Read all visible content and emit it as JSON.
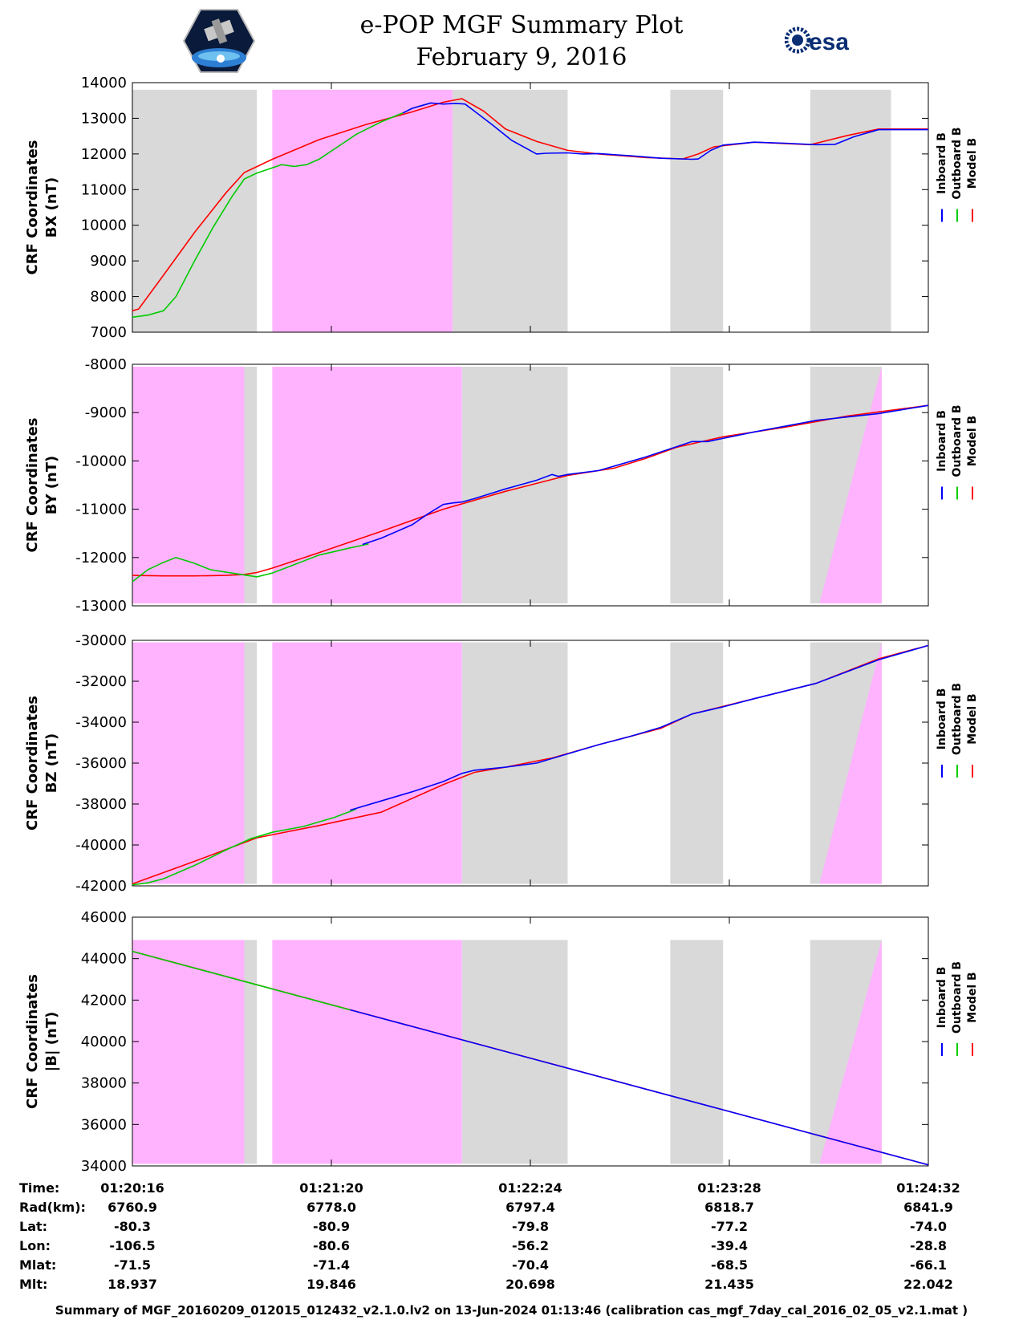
{
  "title_line1": "e-POP MGF Summary Plot",
  "title_line2": "February 9, 2016",
  "logos": {
    "left": "cassiope-epop-mission-logo",
    "right": "esa-logo",
    "right_text": "esa"
  },
  "colors": {
    "inboard": "#0000ff",
    "outboard": "#00cc00",
    "model": "#ff0000",
    "gray_band": "#d9d9d9",
    "pink_band": "#ffb3ff"
  },
  "chart_data": [
    {
      "type": "line",
      "ylabel_line1": "CRF Coordinates",
      "ylabel_line2": "BX (nT)",
      "ylim": [
        7000,
        14000
      ],
      "yticks": [
        7000,
        8000,
        9000,
        10000,
        11000,
        12000,
        13000,
        14000
      ],
      "xlim": [
        0,
        256
      ],
      "legend": [
        "Inboard B",
        "Outboard B",
        "Model B"
      ],
      "bands": [
        {
          "color": "gray",
          "x0": 0,
          "x1": 40,
          "y0": 7000,
          "y1": 13800
        },
        {
          "color": "pink",
          "x0": 45,
          "x1": 103,
          "y0": 7000,
          "y1": 13800
        },
        {
          "color": "gray",
          "x0": 103,
          "x1": 140,
          "y0": 7000,
          "y1": 13800
        },
        {
          "color": "gray",
          "x0": 173,
          "x1": 190,
          "y0": 7000,
          "y1": 13800
        },
        {
          "color": "gray",
          "x0": 218,
          "x1": 244,
          "y0": 7000,
          "y1": 13800
        }
      ],
      "series": [
        {
          "name": "Model B",
          "color": "model",
          "x": [
            0,
            2,
            10,
            20,
            30,
            36,
            45,
            60,
            75,
            90,
            100,
            106,
            113,
            120,
            130,
            140,
            150,
            165,
            177,
            182,
            187,
            200,
            218,
            230,
            240,
            256
          ],
          "y": [
            7600,
            7650,
            8600,
            9800,
            10900,
            11480,
            11850,
            12400,
            12820,
            13180,
            13450,
            13550,
            13200,
            12700,
            12350,
            12100,
            12000,
            11900,
            11860,
            12000,
            12200,
            12330,
            12260,
            12520,
            12700,
            12700
          ]
        },
        {
          "name": "Outboard B",
          "color": "outboard",
          "x": [
            0,
            5,
            10,
            14,
            20,
            26,
            32,
            36,
            40,
            44,
            48,
            52,
            56,
            60,
            66,
            72,
            80,
            87,
            90,
            96
          ],
          "y": [
            7420,
            7480,
            7600,
            8000,
            9000,
            9950,
            10800,
            11300,
            11460,
            11580,
            11700,
            11650,
            11700,
            11850,
            12200,
            12550,
            12900,
            13150,
            13280,
            13430
          ]
        },
        {
          "name": "Inboard B",
          "color": "inboard",
          "x": [
            87,
            90,
            96,
            100,
            104,
            107,
            110,
            116,
            122,
            130,
            133,
            140,
            145,
            150,
            160,
            170,
            180,
            182,
            186,
            190,
            200,
            210,
            220,
            226,
            232,
            240,
            256
          ],
          "y": [
            13150,
            13280,
            13430,
            13400,
            13420,
            13400,
            13200,
            12800,
            12380,
            12000,
            12020,
            12030,
            12000,
            12010,
            11950,
            11880,
            11850,
            11860,
            12100,
            12250,
            12330,
            12300,
            12260,
            12270,
            12480,
            12680,
            12680
          ]
        }
      ]
    },
    {
      "type": "line",
      "ylabel_line1": "CRF Coordinates",
      "ylabel_line2": "BY (nT)",
      "ylim": [
        -13000,
        -8000
      ],
      "yticks": [
        -13000,
        -12000,
        -11000,
        -10000,
        -9000,
        -8000
      ],
      "xlim": [
        0,
        256
      ],
      "legend": [
        "Inboard B",
        "Outboard B",
        "Model B"
      ],
      "bands": [
        {
          "color": "pink",
          "x0": 0,
          "x1": 36,
          "y0": -12950,
          "y1": -8050
        },
        {
          "color": "gray",
          "x0": 36,
          "x1": 40,
          "y0": -12950,
          "y1": -8050
        },
        {
          "color": "pink",
          "x0": 45,
          "x1": 106,
          "y0": -12950,
          "y1": -8050
        },
        {
          "color": "gray",
          "x0": 106,
          "x1": 140,
          "y0": -12950,
          "y1": -8050
        },
        {
          "color": "gray",
          "x0": 173,
          "x1": 190,
          "y0": -12950,
          "y1": -8050
        },
        {
          "color": "gray",
          "x0": 218,
          "x1": 241,
          "y0": -12950,
          "y1": -8050
        },
        {
          "color": "pink-triangle",
          "x0": 221,
          "x1": 241,
          "y0": -12950,
          "y1": -8050
        }
      ],
      "series": [
        {
          "name": "Model B",
          "color": "model",
          "x": [
            0,
            10,
            20,
            30,
            36,
            40,
            45,
            60,
            80,
            100,
            120,
            140,
            155,
            165,
            175,
            190,
            210,
            230,
            256
          ],
          "y": [
            -12370,
            -12380,
            -12380,
            -12370,
            -12350,
            -12310,
            -12220,
            -11900,
            -11460,
            -11000,
            -10630,
            -10300,
            -10150,
            -9950,
            -9720,
            -9500,
            -9300,
            -9070,
            -8850
          ]
        },
        {
          "name": "Outboard B",
          "color": "outboard",
          "x": [
            0,
            5,
            10,
            14,
            20,
            25,
            30,
            35,
            38,
            40,
            45,
            50,
            60,
            70,
            76
          ],
          "y": [
            -12500,
            -12250,
            -12100,
            -12000,
            -12120,
            -12250,
            -12300,
            -12350,
            -12380,
            -12400,
            -12320,
            -12200,
            -11950,
            -11800,
            -11720
          ]
        },
        {
          "name": "Inboard B",
          "color": "inboard",
          "x": [
            74,
            80,
            90,
            95,
            100,
            103,
            106,
            110,
            120,
            130,
            135,
            137,
            140,
            150,
            165,
            180,
            185,
            200,
            220,
            240,
            256
          ],
          "y": [
            -11730,
            -11600,
            -11320,
            -11100,
            -10900,
            -10870,
            -10850,
            -10780,
            -10580,
            -10400,
            -10280,
            -10320,
            -10280,
            -10200,
            -9920,
            -9600,
            -9600,
            -9400,
            -9160,
            -9020,
            -8850
          ]
        }
      ]
    },
    {
      "type": "line",
      "ylabel_line1": "CRF Coordinates",
      "ylabel_line2": "BZ (nT)",
      "ylim": [
        -42000,
        -30000
      ],
      "yticks": [
        -42000,
        -40000,
        -38000,
        -36000,
        -34000,
        -32000,
        -30000
      ],
      "xlim": [
        0,
        256
      ],
      "legend": [
        "Inboard B",
        "Outboard B",
        "Model B"
      ],
      "bands": [
        {
          "color": "pink",
          "x0": 0,
          "x1": 36,
          "y0": -41900,
          "y1": -30100
        },
        {
          "color": "gray",
          "x0": 36,
          "x1": 40,
          "y0": -41900,
          "y1": -30100
        },
        {
          "color": "pink",
          "x0": 45,
          "x1": 106,
          "y0": -41900,
          "y1": -30100
        },
        {
          "color": "gray",
          "x0": 106,
          "x1": 140,
          "y0": -41900,
          "y1": -30100
        },
        {
          "color": "gray",
          "x0": 173,
          "x1": 190,
          "y0": -41900,
          "y1": -30100
        },
        {
          "color": "gray",
          "x0": 218,
          "x1": 241,
          "y0": -41900,
          "y1": -30100
        },
        {
          "color": "pink-triangle",
          "x0": 221,
          "x1": 241,
          "y0": -41900,
          "y1": -30100
        }
      ],
      "series": [
        {
          "name": "Model B",
          "color": "model",
          "x": [
            0,
            20,
            40,
            60,
            80,
            100,
            110,
            120,
            135,
            150,
            170,
            180,
            200,
            220,
            240,
            256
          ],
          "y": [
            -41900,
            -40800,
            -39650,
            -39050,
            -38400,
            -37050,
            -36450,
            -36200,
            -35750,
            -35100,
            -34300,
            -33600,
            -32850,
            -32100,
            -30900,
            -30250
          ]
        },
        {
          "name": "Outboard B",
          "color": "outboard",
          "x": [
            0,
            5,
            10,
            20,
            30,
            38,
            45,
            55,
            65,
            72
          ],
          "y": [
            -41950,
            -41850,
            -41650,
            -41000,
            -40250,
            -39700,
            -39380,
            -39100,
            -38650,
            -38250
          ]
        },
        {
          "name": "Inboard B",
          "color": "inboard",
          "x": [
            70,
            80,
            90,
            100,
            106,
            110,
            120,
            130,
            140,
            150,
            160,
            170,
            180,
            190,
            200,
            220,
            240,
            256
          ],
          "y": [
            -38300,
            -37850,
            -37400,
            -36900,
            -36500,
            -36350,
            -36200,
            -36000,
            -35550,
            -35100,
            -34700,
            -34250,
            -33600,
            -33250,
            -32850,
            -32100,
            -30950,
            -30250
          ]
        }
      ]
    },
    {
      "type": "line",
      "ylabel_line1": "CRF Coordinates",
      "ylabel_line2": "|B| (nT)",
      "ylim": [
        34000,
        46000
      ],
      "yticks": [
        34000,
        36000,
        38000,
        40000,
        42000,
        44000,
        46000
      ],
      "xlim": [
        0,
        256
      ],
      "legend": [
        "Inboard B",
        "Outboard B",
        "Model B"
      ],
      "bands": [
        {
          "color": "pink",
          "x0": 0,
          "x1": 36,
          "y0": 34100,
          "y1": 44900
        },
        {
          "color": "gray",
          "x0": 36,
          "x1": 40,
          "y0": 34100,
          "y1": 44900
        },
        {
          "color": "pink",
          "x0": 45,
          "x1": 106,
          "y0": 34100,
          "y1": 44900
        },
        {
          "color": "gray",
          "x0": 106,
          "x1": 140,
          "y0": 34100,
          "y1": 44900
        },
        {
          "color": "gray",
          "x0": 173,
          "x1": 190,
          "y0": 34100,
          "y1": 44900
        },
        {
          "color": "gray",
          "x0": 218,
          "x1": 241,
          "y0": 34100,
          "y1": 44900
        },
        {
          "color": "pink-triangle",
          "x0": 221,
          "x1": 241,
          "y0": 34100,
          "y1": 44900
        }
      ],
      "series": [
        {
          "name": "Model B",
          "color": "model",
          "x": [
            0,
            256
          ],
          "y": [
            44350,
            34050
          ]
        },
        {
          "name": "Outboard B",
          "color": "outboard",
          "x": [
            0,
            70
          ],
          "y": [
            44350,
            41530
          ]
        },
        {
          "name": "Inboard B",
          "color": "inboard",
          "x": [
            70,
            256
          ],
          "y": [
            41530,
            34050
          ]
        }
      ]
    }
  ],
  "ephemeris": {
    "row_labels": [
      "Time:",
      "Rad(km):",
      "Lat:",
      "Lon:",
      "Mlat:",
      "Mlt:"
    ],
    "columns": [
      [
        "01:20:16",
        "6760.9",
        "-80.3",
        "-106.5",
        "-71.5",
        "18.937"
      ],
      [
        "01:21:20",
        "6778.0",
        "-80.9",
        "-80.6",
        "-71.4",
        "19.846"
      ],
      [
        "01:22:24",
        "6797.4",
        "-79.8",
        "-56.2",
        "-70.4",
        "20.698"
      ],
      [
        "01:23:28",
        "6818.7",
        "-77.2",
        "-39.4",
        "-68.5",
        "21.435"
      ],
      [
        "01:24:32",
        "6841.9",
        "-74.0",
        "-28.8",
        "-66.1",
        "22.042"
      ]
    ]
  },
  "footer": "Summary of MGF_20160209_012015_012432_v2.1.0.lv2 on 13-Jun-2024 01:13:46 (calibration cas_mgf_7day_cal_2016_02_05_v2.1.mat )"
}
